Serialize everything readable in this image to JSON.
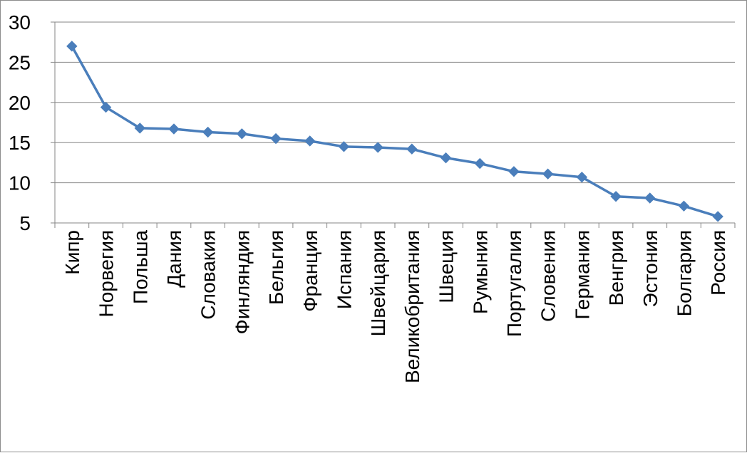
{
  "chart_data": {
    "type": "line",
    "title": "",
    "xlabel": "",
    "ylabel": "",
    "ylim": [
      5,
      30
    ],
    "yticks": [
      5,
      10,
      15,
      20,
      25,
      30
    ],
    "grid": "horizontal",
    "legend": "none",
    "categories": [
      "Кипр",
      "Норвегия",
      "Польша",
      "Дания",
      "Словакия",
      "Финляндия",
      "Бельгия",
      "Франция",
      "Испания",
      "Швейцария",
      "Великобритания",
      "Швеция",
      "Румыния",
      "Португалия",
      "Словения",
      "Германия",
      "Венгрия",
      "Эстония",
      "Болгария",
      "Россия"
    ],
    "series": [
      {
        "values": [
          27.0,
          19.4,
          16.8,
          16.7,
          16.3,
          16.1,
          15.5,
          15.2,
          14.5,
          14.4,
          14.2,
          13.1,
          12.4,
          11.4,
          11.1,
          10.7,
          8.3,
          8.1,
          7.1,
          5.8
        ]
      }
    ],
    "line_color": "#4a7ebb",
    "marker": "diamond"
  }
}
